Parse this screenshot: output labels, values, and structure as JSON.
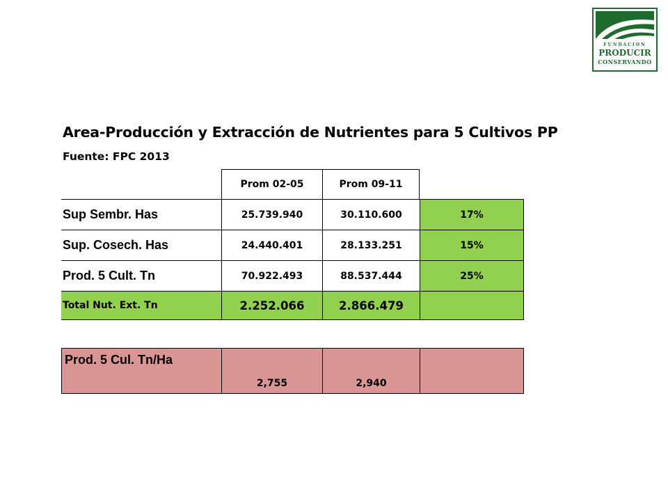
{
  "logo": {
    "line1": "FUNDACION",
    "line2": "PRODUCIR",
    "line3": "CONSERVANDO"
  },
  "title": "Area-Producción y Extracción de Nutrientes para 5 Cultivos PP",
  "subtitle": "Fuente: FPC 2013",
  "table": {
    "headers": [
      "Prom 02-05",
      "Prom 09-11"
    ],
    "rows": [
      {
        "label": "Sup Sembr. Has",
        "v1": "25.739.940",
        "v2": "30.110.600",
        "pct": "17%"
      },
      {
        "label": "Sup. Cosech. Has",
        "v1": "24.440.401",
        "v2": "28.133.251",
        "pct": "15%"
      },
      {
        "label": "Prod. 5 Cult. Tn",
        "v1": "70.922.493",
        "v2": "88.537.444",
        "pct": "25%"
      },
      {
        "label": "Total Nut. Ext. Tn",
        "v1": "2.252.066",
        "v2": "2.866.479",
        "pct": ""
      }
    ]
  },
  "table2": {
    "label": "Prod. 5 Cul. Tn/Ha",
    "v1": "2,755",
    "v2": "2,940",
    "v3": ""
  },
  "colors": {
    "green": "#92d050",
    "pink": "#da9694",
    "logo_green": "#1f6b2e"
  }
}
